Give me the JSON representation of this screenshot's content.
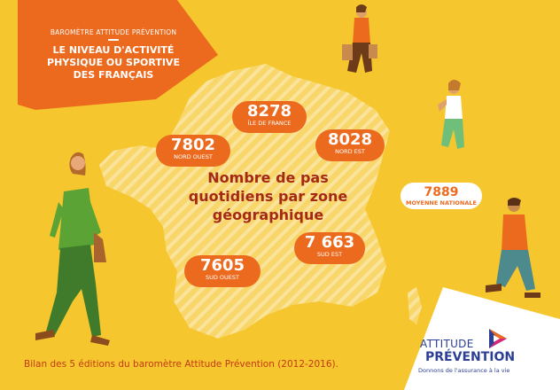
{
  "header": {
    "kicker": "BAROMÈTRE ATTITUDE PRÉVENTION",
    "title_lines": [
      "LE NIVEAU D'ACTIVITÉ",
      "PHYSIQUE OU SPORTIVE",
      "DES FRANÇAIS"
    ]
  },
  "center_title_lines": [
    "Nombre de pas",
    "quotidiens par zone",
    "géographique"
  ],
  "regions": {
    "ile_de_france": {
      "value": "8278",
      "label": "ÎLE DE FRANCE"
    },
    "nord_ouest": {
      "value": "7802",
      "label": "NORD OUEST"
    },
    "nord_est": {
      "value": "8028",
      "label": "NORD EST"
    },
    "sud_est": {
      "value": "7 663",
      "label": "SUD EST"
    },
    "sud_ouest": {
      "value": "7605",
      "label": "SUD OUEST"
    },
    "moyenne": {
      "value": "7889",
      "label": "MOYENNE NATIONALE"
    }
  },
  "footer_note": "Bilan des 5 éditions du baromètre Attitude Prévention (2012-2016).",
  "logo": {
    "line1": "ATTITUDE",
    "line2": "PRÉVENTION",
    "tagline": "Donnons de l'assurance à la vie"
  },
  "colors": {
    "background": "#f6c62e",
    "accent_orange": "#ec6a1e",
    "title_red": "#a52a16",
    "logo_blue": "#2c3f95"
  }
}
